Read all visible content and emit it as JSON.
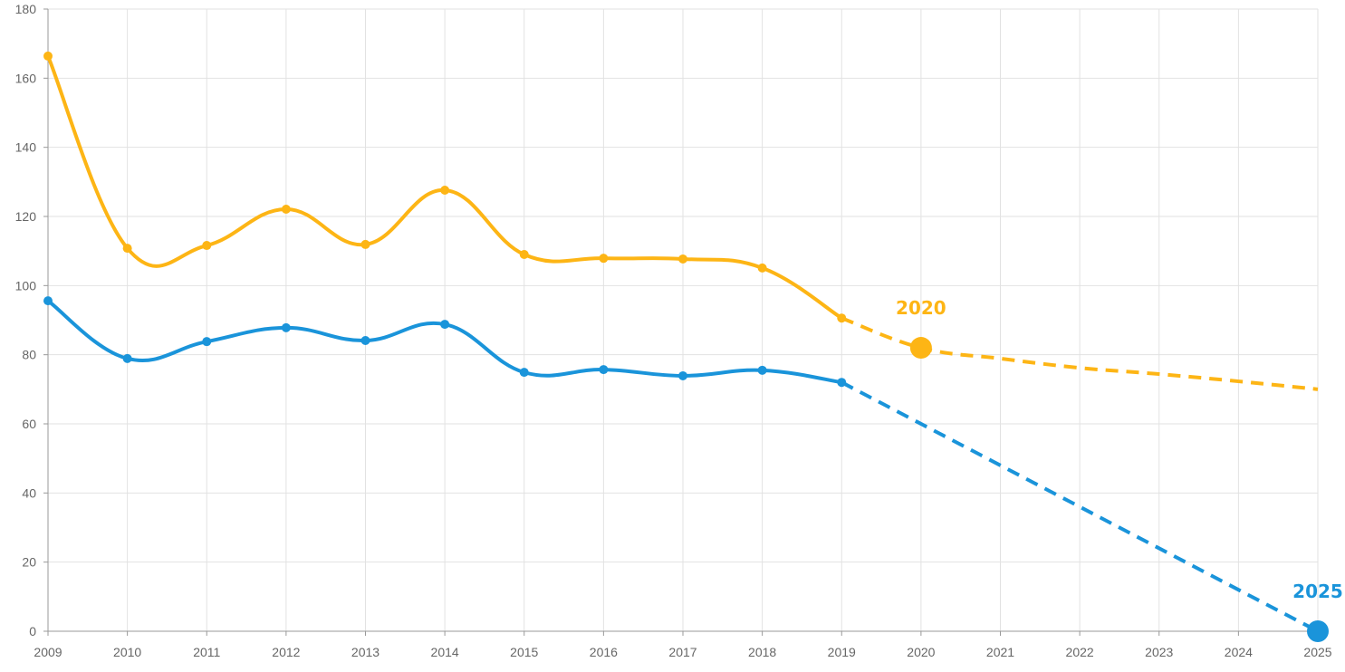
{
  "chart_data": {
    "type": "line",
    "title": "",
    "xlabel": "",
    "ylabel": "",
    "xlim": [
      2009,
      2025
    ],
    "ylim": [
      0,
      180
    ],
    "y_ticks": [
      "0",
      "20",
      "40",
      "60",
      "80",
      "100",
      "120",
      "140",
      "160",
      "180"
    ],
    "x_ticks": [
      "2009",
      "2010",
      "2011",
      "2012",
      "2013",
      "2014",
      "2015",
      "2016",
      "2017",
      "2018",
      "2019",
      "2020",
      "2021",
      "2022",
      "2023",
      "2024",
      "2025"
    ],
    "grid": true,
    "series": [
      {
        "name": "yellow",
        "color": "#FDB515",
        "x": [
          2009,
          2010,
          2011,
          2012,
          2013,
          2014,
          2015,
          2016,
          2017,
          2018,
          2019
        ],
        "values": [
          166.4,
          110.8,
          111.6,
          122.1,
          111.9,
          127.6,
          109.0,
          107.9,
          107.7,
          105.1,
          90.6
        ],
        "projection": {
          "x": [
            2019,
            2020,
            2021,
            2022,
            2023,
            2024,
            2025
          ],
          "values": [
            90.6,
            82.0,
            78.9,
            76.2,
            74.4,
            72.3,
            70.0
          ]
        },
        "highlight": {
          "x": 2020,
          "value": 82.0,
          "label": "2020"
        }
      },
      {
        "name": "blue",
        "color": "#1A94DA",
        "x": [
          2009,
          2010,
          2011,
          2012,
          2013,
          2014,
          2015,
          2016,
          2017,
          2018,
          2019
        ],
        "values": [
          95.6,
          78.9,
          83.8,
          87.8,
          84.1,
          88.8,
          74.9,
          75.7,
          73.9,
          75.5,
          72.0
        ],
        "projection": {
          "x": [
            2019,
            2025
          ],
          "values": [
            72.0,
            0
          ]
        },
        "highlight": {
          "x": 2025,
          "value": 0,
          "label": "2025"
        }
      }
    ]
  }
}
